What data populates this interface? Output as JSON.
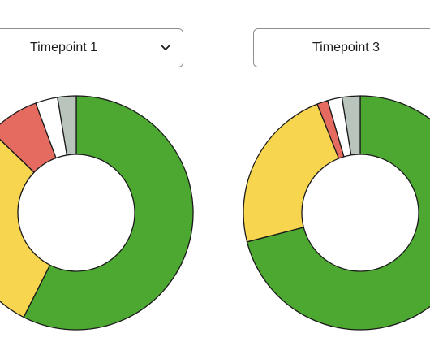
{
  "selectors": [
    {
      "label": "Timepoint 1",
      "icon": "chevron-down-icon"
    },
    {
      "label": "Timepoint 3"
    }
  ],
  "chart_data": [
    {
      "type": "pie",
      "donut": true,
      "start_angle_deg": 0,
      "direction": "clockwise",
      "slices": [
        {
          "value": 56,
          "color": "#4da832"
        },
        {
          "value": 29,
          "color": "#f8d54e"
        },
        {
          "value": 7,
          "color": "#e56b60"
        },
        {
          "value": 3,
          "color": "#ffffff"
        },
        {
          "value": 2.5,
          "color": "#b8c4bc"
        }
      ]
    },
    {
      "type": "pie",
      "donut": true,
      "start_angle_deg": 0,
      "direction": "clockwise",
      "slices": [
        {
          "value": 71,
          "color": "#4da832"
        },
        {
          "value": 23,
          "color": "#f8d54e"
        },
        {
          "value": 1.5,
          "color": "#e56b60"
        },
        {
          "value": 2,
          "color": "#ffffff"
        },
        {
          "value": 2.5,
          "color": "#b8c4bc"
        }
      ]
    }
  ]
}
